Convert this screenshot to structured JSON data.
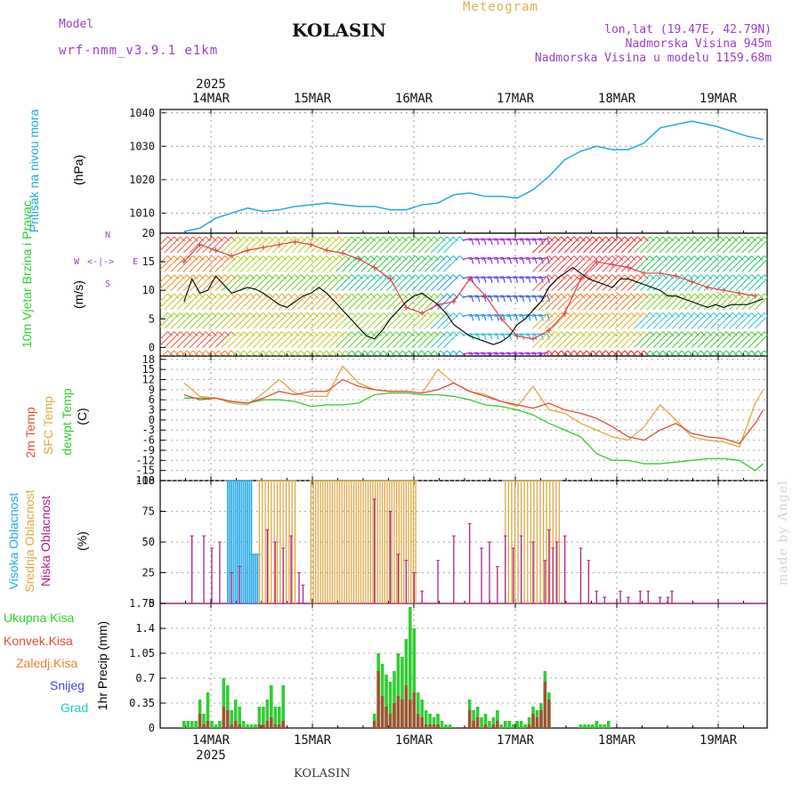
{
  "header": {
    "model_label": "Model",
    "model_name": "wrf-nmm_v3.9.1 e1km",
    "title": "KOLASIN",
    "chart_type": "Meteogram",
    "coords": "lon,lat (19.47E, 42.79N)",
    "elevation": "Nadmorska Visina 945m",
    "model_elevation": "Nadmorska Visina u modelu 1159.68m"
  },
  "footer": "KOLASIN",
  "watermark": "made by Angel",
  "time_axis": {
    "year": "2025",
    "days": [
      "14MAR",
      "15MAR",
      "16MAR",
      "17MAR",
      "18MAR",
      "19MAR"
    ]
  },
  "colors": {
    "pressure": "#22a8e8",
    "wind_speed": "#000000",
    "temp_2m": "#e84a3a",
    "temp_sfc": "#e0a840",
    "dewpoint": "#33cc33",
    "cloud_high": "#22a8e8",
    "cloud_mid": "#e0a840",
    "cloud_low": "#b0208a",
    "precip_total": "#33cc33",
    "precip_conv": "#e84a3a",
    "precip_freez": "#f08030",
    "precip_snow": "#4444dd",
    "precip_hail": "#22c8c8"
  },
  "chart_data": [
    {
      "type": "line",
      "name": "pressure",
      "ylabel": "Pritisak na nivou mora",
      "unit": "(hPa)",
      "ylim": [
        1004,
        1041
      ],
      "yticks": [
        1010,
        1020,
        1030,
        1040
      ],
      "x_hours": [
        0,
        4,
        8,
        12,
        16,
        20,
        24,
        28,
        32,
        36,
        40,
        44,
        48,
        52,
        56,
        60,
        64,
        68,
        72,
        76,
        80,
        84,
        88,
        92,
        96,
        100,
        104,
        108,
        112,
        116,
        120,
        124,
        128,
        130,
        134,
        138,
        142,
        146
      ],
      "values": [
        1004.5,
        1005.5,
        1008.5,
        1010,
        1011.5,
        1010.5,
        1011,
        1012,
        1012.5,
        1013,
        1012.5,
        1012,
        1012,
        1011,
        1011,
        1012.5,
        1013,
        1015.5,
        1016,
        1015,
        1015,
        1014.5,
        1017,
        1021,
        1026,
        1028.5,
        1030,
        1029,
        1029,
        1031,
        1035.5,
        1036.5,
        1037.5,
        1037,
        1036,
        1034.5,
        1033,
        1032
      ]
    },
    {
      "type": "line",
      "name": "wind",
      "ylabel": "10m Vjetar Brzina i Pravac",
      "unit": "(m/s)",
      "compass": [
        "N",
        "W",
        "E",
        "S"
      ],
      "ylim": [
        -1.5,
        20
      ],
      "yticks": [
        0,
        5,
        10,
        15,
        20
      ],
      "x_hours": [
        0,
        2,
        4,
        6,
        8,
        10,
        12,
        14,
        16,
        18,
        20,
        22,
        24,
        26,
        28,
        30,
        32,
        34,
        36,
        38,
        40,
        42,
        44,
        46,
        48,
        50,
        52,
        54,
        56,
        58,
        60,
        62,
        64,
        66,
        68,
        70,
        72,
        74,
        76,
        78,
        80,
        82,
        84,
        86,
        88,
        90,
        92,
        94,
        96,
        98,
        100,
        102,
        104,
        106,
        108,
        110,
        112,
        114,
        116,
        118,
        120,
        122,
        124,
        126,
        128,
        130,
        132,
        134,
        136,
        138,
        140,
        142,
        144,
        146
      ],
      "speed": [
        8,
        12,
        9.5,
        10,
        12.5,
        11,
        9.5,
        10,
        10.5,
        10.2,
        9.5,
        8.5,
        7.5,
        7,
        8,
        9,
        9.5,
        10.5,
        9.5,
        8,
        6.5,
        5,
        3.5,
        2,
        1.5,
        3,
        5,
        6.5,
        8,
        9,
        9.5,
        8.5,
        7.5,
        6,
        4,
        3,
        2,
        1.5,
        1,
        0.5,
        1,
        2,
        4,
        5,
        6.5,
        8,
        10.5,
        12,
        13,
        14,
        13,
        12,
        11.5,
        11,
        10.5,
        12,
        12,
        11.5,
        11,
        10.5,
        10,
        9,
        9,
        8.5,
        8,
        7.5,
        7,
        7.5,
        7,
        7.5,
        7.5,
        7.5,
        8,
        8.5
      ],
      "gust_x_hours": [
        0,
        4,
        8,
        12,
        16,
        20,
        24,
        28,
        32,
        36,
        40,
        44,
        48,
        52,
        56,
        60,
        64,
        68,
        72,
        76,
        80,
        84,
        88,
        92,
        96,
        100,
        104,
        108,
        112,
        116,
        120,
        124,
        128,
        132,
        136,
        140,
        144
      ],
      "gust": [
        15,
        18,
        17,
        16,
        17,
        17.5,
        18,
        18.5,
        18,
        17,
        16.5,
        15.5,
        14,
        12,
        7,
        6,
        7.5,
        8,
        12,
        9,
        5,
        2,
        1.5,
        3,
        6,
        12,
        15,
        14.5,
        14,
        13,
        13,
        12.5,
        11.5,
        10.5,
        10,
        9.5,
        9
      ],
      "barb_rows": [
        {
          "y": 15.5,
          "color": "#9a2fd8",
          "from_h": 70,
          "to_h": 90
        },
        {
          "y": 12.5,
          "color": "#8a2fe0",
          "from_h": 70,
          "to_h": 90
        },
        {
          "y": 9,
          "color": "#7a3fe8",
          "from_h": 70,
          "to_h": 90
        },
        {
          "y": 6,
          "color": "#5a4fe8",
          "from_h": 70,
          "to_h": 90
        },
        {
          "y": 3,
          "color": "#3a5fe8",
          "from_h": 70,
          "to_h": 90
        },
        {
          "y": 0,
          "color": "#2a6fe8",
          "from_h": 70,
          "to_h": 90
        }
      ]
    },
    {
      "type": "line",
      "name": "temperature",
      "series_names": [
        "2m Temp",
        "SFC Temp",
        "dewpt Temp"
      ],
      "unit": "(C)",
      "ylim": [
        -18,
        19
      ],
      "yticks": [
        18,
        15,
        12,
        9,
        6,
        3,
        0,
        -3,
        -6,
        -9,
        -12,
        -15,
        -18
      ],
      "x_hours": [
        0,
        4,
        8,
        12,
        16,
        20,
        24,
        28,
        32,
        36,
        40,
        44,
        48,
        52,
        56,
        60,
        64,
        68,
        72,
        76,
        80,
        84,
        88,
        92,
        96,
        100,
        104,
        108,
        112,
        116,
        120,
        124,
        128,
        132,
        136,
        140,
        144,
        146
      ],
      "t2m": [
        7.5,
        6,
        6.5,
        5.5,
        5,
        6.5,
        8.5,
        7.5,
        8.5,
        8.5,
        12,
        10,
        9,
        8.5,
        8.5,
        8,
        9,
        11,
        8.5,
        7,
        5.5,
        4.5,
        3.5,
        5,
        3,
        2,
        0.5,
        -2,
        -5,
        -6,
        -3,
        -1,
        -4,
        -5,
        -5.5,
        -7,
        -1,
        3
      ],
      "tsfc": [
        11,
        7,
        6.5,
        5,
        4.5,
        8,
        12,
        8,
        7,
        7,
        16,
        11,
        9,
        8.5,
        8.5,
        8,
        15,
        11,
        8.5,
        7.5,
        5.5,
        4,
        10,
        3,
        2,
        -1,
        -3,
        -5,
        -6,
        -2,
        4.5,
        0,
        -5,
        -6,
        -6.5,
        -8,
        5,
        9
      ],
      "dew": [
        6.5,
        6.5,
        6.5,
        5.5,
        5,
        6,
        6,
        5.5,
        4,
        4.5,
        4.5,
        5,
        7.5,
        8,
        8,
        7.5,
        7.5,
        7,
        6,
        4.5,
        4,
        3,
        1.5,
        -1,
        -3,
        -5,
        -10,
        -12,
        -12,
        -13,
        -13,
        -12.5,
        -12,
        -11.5,
        -11.5,
        -12,
        -15,
        -13
      ]
    },
    {
      "type": "bar",
      "name": "clouds",
      "series_names": [
        "Visoka Oblacnost",
        "Srednja Oblacnost",
        "Niska Oblacnost"
      ],
      "unit": "(%)",
      "ylim": [
        0,
        100
      ],
      "yticks": [
        0,
        25,
        50,
        75,
        100
      ],
      "high": [
        {
          "from_h": 11,
          "to_h": 17,
          "step": 0.5,
          "value": 100
        },
        {
          "from_h": 17,
          "to_h": 19,
          "step": 0.5,
          "value": 40
        }
      ],
      "mid": [
        {
          "from_h": 19,
          "to_h": 28,
          "step": 0.75,
          "value": 100
        },
        {
          "from_h": 32,
          "to_h": 59,
          "step": 0.6,
          "value": 100
        },
        {
          "from_h": 81,
          "to_h": 95,
          "step": 0.8,
          "value": 100
        }
      ],
      "low_hours": [
        2,
        5,
        7,
        9,
        12,
        14,
        21,
        23,
        25,
        27,
        29,
        30,
        48,
        52,
        54,
        56,
        58,
        60,
        64,
        68,
        72,
        75,
        77,
        79,
        81,
        83,
        85,
        88,
        91,
        92,
        93,
        94,
        96,
        100,
        102,
        104,
        106,
        110,
        112,
        115,
        117,
        120,
        122,
        123
      ],
      "low_values": [
        55,
        55,
        45,
        50,
        25,
        30,
        60,
        50,
        45,
        55,
        25,
        15,
        85,
        75,
        40,
        35,
        25,
        10,
        35,
        55,
        65,
        45,
        50,
        30,
        55,
        45,
        55,
        50,
        35,
        60,
        45,
        50,
        55,
        45,
        35,
        10,
        5,
        10,
        5,
        10,
        10,
        5,
        5,
        10
      ]
    },
    {
      "type": "bar",
      "name": "precipitation",
      "series_names": [
        "Ukupna Kisa",
        "Konvek.Kisa",
        "Zaledj.Kisa",
        "Snijeg",
        "Grad"
      ],
      "ylabel": "1hr Precip (mm)",
      "ylim": [
        0,
        1.75
      ],
      "yticks": [
        0,
        0.35,
        0.7,
        1.05,
        1.4,
        1.75
      ],
      "x_hours": [
        0,
        1,
        2,
        3,
        4,
        5,
        6,
        7,
        8,
        9,
        10,
        11,
        12,
        13,
        14,
        15,
        16,
        17,
        18,
        19,
        20,
        21,
        22,
        23,
        24,
        25,
        48,
        49,
        50,
        51,
        52,
        53,
        54,
        55,
        56,
        57,
        58,
        59,
        60,
        61,
        62,
        63,
        64,
        65,
        66,
        67,
        72,
        73,
        74,
        75,
        76,
        77,
        78,
        79,
        80,
        81,
        82,
        83,
        84,
        85,
        86,
        87,
        88,
        89,
        90,
        91,
        92,
        100,
        101,
        102,
        103,
        104,
        105,
        106,
        107
      ],
      "total": [
        0.1,
        0.1,
        0.1,
        0.1,
        0.4,
        0.2,
        0.5,
        0.1,
        0.05,
        0.1,
        0.7,
        0.6,
        0.25,
        0.4,
        0.3,
        0.1,
        0.05,
        0.05,
        0.05,
        0.3,
        0.3,
        0.4,
        0.6,
        0.3,
        0.3,
        0.6,
        0.2,
        1.05,
        0.9,
        0.75,
        0.65,
        0.8,
        1.05,
        1.0,
        1.25,
        1.7,
        1.4,
        0.5,
        0.4,
        0.25,
        0.2,
        0.15,
        0.2,
        0.1,
        0.05,
        0.05,
        0.4,
        0.25,
        0.3,
        0.15,
        0.2,
        0.1,
        0.15,
        0.25,
        0.05,
        0.1,
        0.1,
        0.05,
        0.1,
        0.1,
        0.05,
        0.15,
        0.3,
        0.25,
        0.35,
        0.8,
        0.5,
        0.05,
        0.05,
        0.05,
        0.05,
        0.1,
        0.05,
        0.05,
        0.1
      ],
      "conv": [
        0,
        0,
        0,
        0,
        0.2,
        0.05,
        0.1,
        0,
        0,
        0,
        0.3,
        0.25,
        0.05,
        0.1,
        0.05,
        0,
        0,
        0,
        0,
        0.05,
        0.05,
        0.1,
        0.15,
        0.05,
        0.05,
        0.1,
        0.1,
        0.8,
        0.45,
        0.3,
        0.2,
        0.35,
        0.45,
        0.4,
        0.6,
        0.4,
        0.5,
        0.2,
        0.15,
        0.05,
        0.05,
        0.05,
        0.05,
        0,
        0,
        0,
        0.25,
        0.1,
        0.15,
        0,
        0.05,
        0,
        0.05,
        0.1,
        0,
        0,
        0,
        0,
        0,
        0,
        0,
        0.05,
        0.2,
        0.15,
        0.25,
        0.65,
        0.4,
        0,
        0,
        0,
        0,
        0,
        0,
        0,
        0
      ]
    }
  ],
  "legend_precip": [
    "Ukupna Kisa",
    "Konvek.Kisa",
    "Zaledj.Kisa",
    "Snijeg",
    "Grad"
  ]
}
